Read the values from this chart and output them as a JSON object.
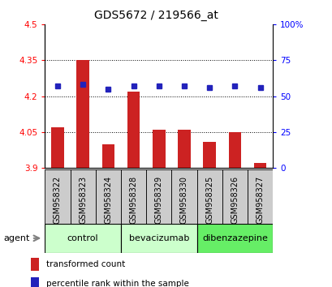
{
  "title": "GDS5672 / 219566_at",
  "samples": [
    "GSM958322",
    "GSM958323",
    "GSM958324",
    "GSM958328",
    "GSM958329",
    "GSM958330",
    "GSM958325",
    "GSM958326",
    "GSM958327"
  ],
  "bar_values": [
    4.07,
    4.35,
    4.0,
    4.22,
    4.06,
    4.06,
    4.01,
    4.05,
    3.92
  ],
  "dot_values": [
    57,
    58,
    55,
    57,
    57,
    57,
    56,
    57,
    56
  ],
  "bar_bottom": 3.9,
  "ylim_left": [
    3.9,
    4.5
  ],
  "ylim_right": [
    0,
    100
  ],
  "yticks_left": [
    3.9,
    4.05,
    4.2,
    4.35,
    4.5
  ],
  "yticks_right": [
    0,
    25,
    50,
    75,
    100
  ],
  "ytick_labels_left": [
    "3.9",
    "4.05",
    "4.2",
    "4.35",
    "4.5"
  ],
  "ytick_labels_right": [
    "0",
    "25",
    "50",
    "75",
    "100%"
  ],
  "group_boundaries": [
    {
      "start": 0,
      "end": 2,
      "label": "control",
      "color": "#ccffcc"
    },
    {
      "start": 3,
      "end": 5,
      "label": "bevacizumab",
      "color": "#ccffcc"
    },
    {
      "start": 6,
      "end": 8,
      "label": "dibenzazepine",
      "color": "#66ee66"
    }
  ],
  "bar_color": "#cc2222",
  "dot_color": "#2222bb",
  "agent_label": "agent",
  "legend_bar": "transformed count",
  "legend_dot": "percentile rank within the sample",
  "bar_width": 0.5,
  "sample_box_color": "#cccccc",
  "title_fontsize": 10,
  "tick_fontsize": 7.5,
  "label_fontsize": 7,
  "group_fontsize": 8,
  "legend_fontsize": 7.5
}
